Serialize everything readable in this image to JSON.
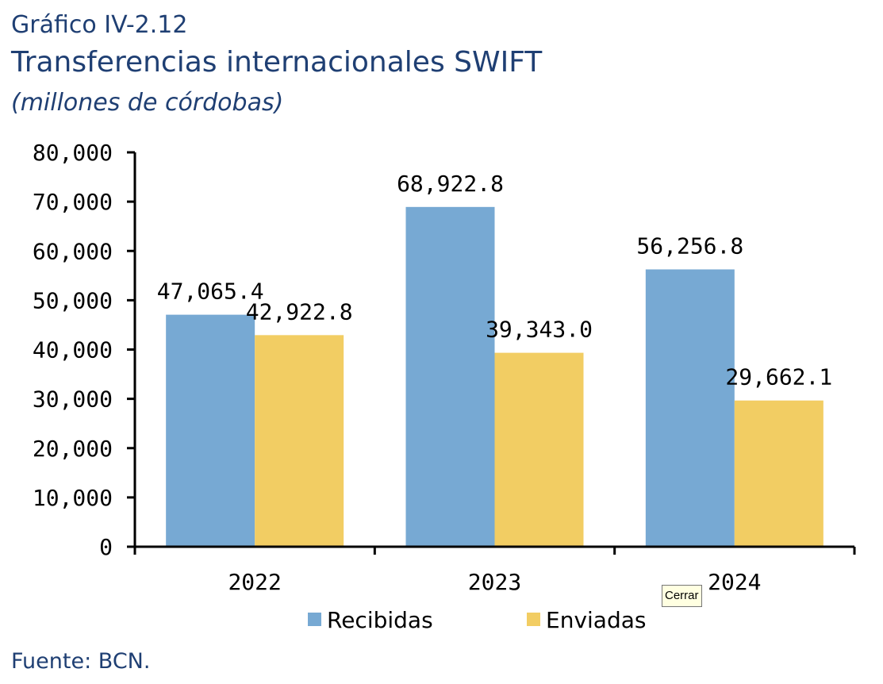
{
  "header": {
    "figure_number": "Gráfico IV-2.12",
    "title": "Transferencias internacionales SWIFT",
    "subtitle": "(millones de córdobas)"
  },
  "chart_data": {
    "type": "bar",
    "categories": [
      "2022",
      "2023",
      "2024"
    ],
    "series": [
      {
        "name": "Recibidas",
        "values": [
          47065.4,
          68922.8,
          56256.8
        ],
        "labels": [
          "47,065.4",
          "68,922.8",
          "56,256.8"
        ],
        "color": "#77a9d3"
      },
      {
        "name": "Enviadas",
        "values": [
          42922.8,
          39343.0,
          29662.1
        ],
        "labels": [
          "42,922.8",
          "39,343.0",
          "29,662.1"
        ],
        "color": "#f2cd63"
      }
    ],
    "y_ticks": [
      0,
      10000,
      20000,
      30000,
      40000,
      50000,
      60000,
      70000,
      80000
    ],
    "y_tick_labels": [
      "0",
      "10,000",
      "20,000",
      "30,000",
      "40,000",
      "50,000",
      "60,000",
      "70,000",
      "80,000"
    ],
    "ylim": [
      0,
      80000
    ],
    "legend_position": "bottom",
    "grid": false
  },
  "tooltip": {
    "text": "Cerrar"
  },
  "footer": {
    "source": "Fuente: BCN."
  }
}
